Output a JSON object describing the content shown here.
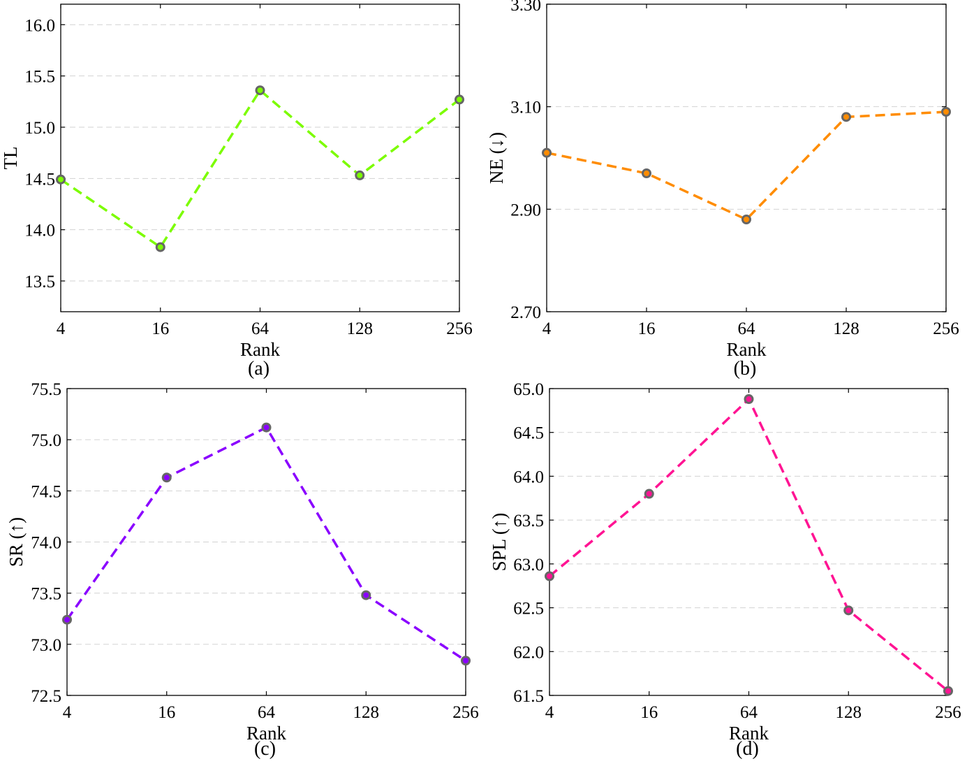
{
  "chart_data": [
    {
      "type": "line",
      "panel_label": "(a)",
      "xlabel": "Rank",
      "ylabel": "TL",
      "categories": [
        "4",
        "16",
        "64",
        "128",
        "256"
      ],
      "ylim": [
        13.2,
        16.2
      ],
      "yticks": [
        "13.5",
        "14.0",
        "14.5",
        "15.0",
        "15.5",
        "16.0"
      ],
      "grid": "horizontal-dashed",
      "series": [
        {
          "values": [
            14.49,
            13.83,
            15.36,
            14.53,
            15.27
          ],
          "color": "#7cfc00"
        }
      ]
    },
    {
      "type": "line",
      "panel_label": "(b)",
      "xlabel": "Rank",
      "ylabel": "NE (↓)",
      "categories": [
        "4",
        "16",
        "64",
        "128",
        "256"
      ],
      "ylim": [
        2.7,
        3.3
      ],
      "yticks": [
        "2.70",
        "2.90",
        "3.10",
        "3.30"
      ],
      "grid": "horizontal-dashed",
      "series": [
        {
          "values": [
            3.01,
            2.97,
            2.88,
            3.08,
            3.09
          ],
          "color": "#ff8c00"
        }
      ]
    },
    {
      "type": "line",
      "panel_label": "(c)",
      "xlabel": "Rank",
      "ylabel": "SR (↑)",
      "categories": [
        "4",
        "16",
        "64",
        "128",
        "256"
      ],
      "ylim": [
        72.5,
        75.5
      ],
      "yticks": [
        "72.5",
        "73.0",
        "73.5",
        "74.0",
        "74.5",
        "75.0",
        "75.5"
      ],
      "grid": "horizontal-dashed",
      "series": [
        {
          "values": [
            73.24,
            74.63,
            75.12,
            73.48,
            72.84
          ],
          "color": "#8a00ff"
        }
      ]
    },
    {
      "type": "line",
      "panel_label": "(d)",
      "xlabel": "Rank",
      "ylabel": "SPL (↑)",
      "categories": [
        "4",
        "16",
        "64",
        "128",
        "256"
      ],
      "ylim": [
        61.5,
        65.0
      ],
      "yticks": [
        "61.5",
        "62.0",
        "62.5",
        "63.0",
        "63.5",
        "64.0",
        "64.5",
        "65.0"
      ],
      "grid": "horizontal-dashed",
      "series": [
        {
          "values": [
            62.86,
            63.8,
            64.88,
            62.47,
            61.55
          ],
          "color": "#ff1493"
        }
      ]
    }
  ],
  "colors": {
    "marker_edge": "#666666",
    "grid": "#d3d3d3",
    "axis": "#000000"
  }
}
